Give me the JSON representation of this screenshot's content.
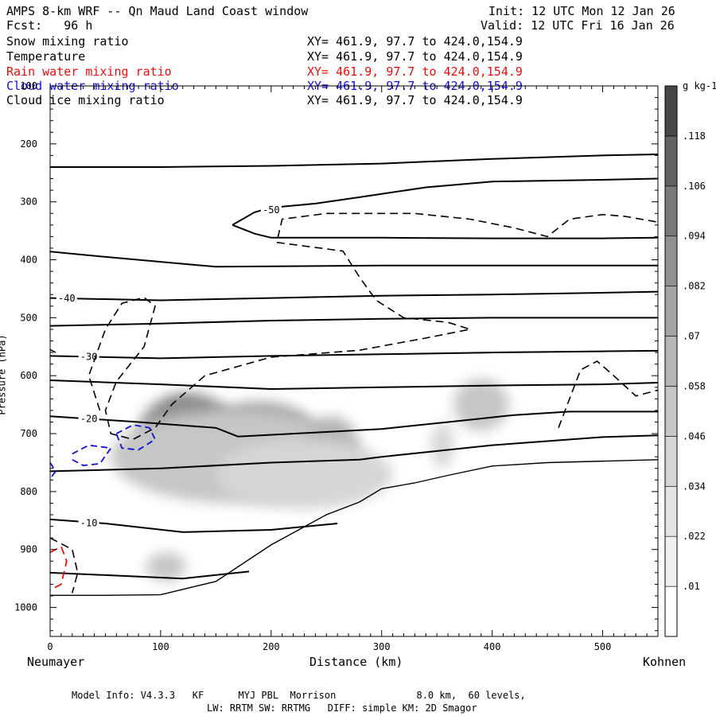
{
  "header": {
    "title": "AMPS 8-km WRF -- Qn Maud Land Coast window",
    "forecast": "Fcst:   96 h",
    "init": "Init: 12 UTC Mon 12 Jan 26",
    "valid": "Valid: 12 UTC Fri 16 Jan 26"
  },
  "fields": [
    {
      "name": "Snow mixing ratio",
      "xy": "XY= 461.9, 97.7 to 424.0,154.9",
      "color": "#000000"
    },
    {
      "name": "Temperature",
      "xy": "XY= 461.9, 97.7 to 424.0,154.9",
      "color": "#000000"
    },
    {
      "name": "Rain water mixing ratio",
      "xy": "XY= 461.9, 97.7 to 424.0,154.9",
      "color": "#e01010"
    },
    {
      "name": "Cloud water mixing ratio",
      "xy": "XY= 461.9, 97.7 to 424.0,154.9",
      "color": "#1010d0"
    },
    {
      "name": "Cloud ice mixing ratio",
      "xy": "XY= 461.9, 97.7 to 424.0,154.9",
      "color": "#000000"
    }
  ],
  "footer": {
    "model_line1": "Model Info: V4.3.3   KF      MYJ PBL  Morrison              8.0 km,  60 levels,",
    "model_line2": "LW: RRTM SW: RRTMG   DIFF: simple KM: 2D Smagor"
  },
  "chart_data": {
    "type": "heatmap",
    "title": "AMPS 8-km WRF -- Qn Maud Land Coast window",
    "xlabel": "Distance (km)",
    "ylabel": "Pressure (hPa)",
    "x_left_label": "Neumayer",
    "x_right_label": "Kohnen",
    "xlim": [
      0,
      550
    ],
    "ylim": [
      1050,
      100
    ],
    "x_ticks": [
      0,
      100,
      200,
      300,
      400,
      500
    ],
    "y_ticks": [
      100,
      200,
      300,
      400,
      500,
      600,
      700,
      800,
      900,
      1000
    ],
    "colorbar": {
      "unit": "g kg-1",
      "levels": [
        0.01,
        0.022,
        0.034,
        0.046,
        0.058,
        0.07,
        0.082,
        0.094,
        0.106,
        0.118
      ],
      "labels": [
        ".01",
        ".022",
        ".034",
        ".046",
        ".058",
        ".07",
        ".082",
        ".094",
        ".106",
        ".118"
      ],
      "colors": [
        "#ffffff",
        "#f0f0f0",
        "#e4e4e4",
        "#d6d6d6",
        "#c6c6c6",
        "#b6b6b6",
        "#a4a4a4",
        "#909090",
        "#7a7a7a",
        "#626262",
        "#484848"
      ]
    },
    "snow_blobs": [
      {
        "x": 120,
        "p": 690,
        "rx": 22,
        "ry": 45,
        "level": 10
      },
      {
        "x": 125,
        "p": 700,
        "rx": 45,
        "ry": 70,
        "level": 7
      },
      {
        "x": 190,
        "p": 710,
        "rx": 55,
        "ry": 65,
        "level": 6
      },
      {
        "x": 165,
        "p": 740,
        "rx": 110,
        "ry": 80,
        "level": 4
      },
      {
        "x": 255,
        "p": 730,
        "rx": 25,
        "ry": 60,
        "level": 5
      },
      {
        "x": 230,
        "p": 770,
        "rx": 80,
        "ry": 60,
        "level": 3
      },
      {
        "x": 390,
        "p": 650,
        "rx": 25,
        "ry": 45,
        "level": 4
      },
      {
        "x": 355,
        "p": 720,
        "rx": 10,
        "ry": 40,
        "level": 3
      },
      {
        "x": 105,
        "p": 930,
        "rx": 18,
        "ry": 25,
        "level": 4
      }
    ],
    "temperature_contours": [
      {
        "label": "",
        "label_x": null,
        "points": [
          [
            0,
            240
          ],
          [
            100,
            240
          ],
          [
            200,
            238
          ],
          [
            300,
            234
          ],
          [
            400,
            226
          ],
          [
            500,
            220
          ],
          [
            550,
            218
          ]
        ]
      },
      {
        "label": "-50",
        "label_x": 200,
        "points": [
          [
            165,
            340
          ],
          [
            185,
            318
          ],
          [
            200,
            310
          ],
          [
            240,
            303
          ],
          [
            280,
            292
          ],
          [
            340,
            275
          ],
          [
            400,
            265
          ],
          [
            500,
            262
          ],
          [
            550,
            260
          ]
        ]
      },
      {
        "label": "",
        "label_x": null,
        "points": [
          [
            165,
            340
          ],
          [
            185,
            355
          ],
          [
            200,
            362
          ],
          [
            300,
            362
          ],
          [
            400,
            363
          ],
          [
            500,
            363
          ],
          [
            550,
            362
          ]
        ]
      },
      {
        "label": "",
        "label_x": null,
        "points": [
          [
            0,
            386
          ],
          [
            50,
            395
          ],
          [
            150,
            412
          ],
          [
            300,
            410
          ],
          [
            450,
            410
          ],
          [
            550,
            410
          ]
        ]
      },
      {
        "label": "-40",
        "label_x": 15,
        "points": [
          [
            0,
            466
          ],
          [
            100,
            470
          ],
          [
            200,
            466
          ],
          [
            300,
            462
          ],
          [
            400,
            460
          ],
          [
            500,
            457
          ],
          [
            550,
            455
          ]
        ]
      },
      {
        "label": "",
        "label_x": null,
        "points": [
          [
            0,
            514
          ],
          [
            100,
            510
          ],
          [
            200,
            505
          ],
          [
            300,
            502
          ],
          [
            400,
            500
          ],
          [
            500,
            500
          ],
          [
            550,
            500
          ]
        ]
      },
      {
        "label": "-30",
        "label_x": 35,
        "points": [
          [
            0,
            566
          ],
          [
            100,
            570
          ],
          [
            200,
            566
          ],
          [
            300,
            563
          ],
          [
            400,
            560
          ],
          [
            500,
            558
          ],
          [
            550,
            557
          ]
        ]
      },
      {
        "label": "",
        "label_x": null,
        "points": [
          [
            0,
            608
          ],
          [
            100,
            615
          ],
          [
            200,
            623
          ],
          [
            300,
            620
          ],
          [
            400,
            617
          ],
          [
            500,
            615
          ],
          [
            550,
            612
          ]
        ]
      },
      {
        "label": "-20",
        "label_x": 35,
        "points": [
          [
            0,
            670
          ],
          [
            80,
            680
          ],
          [
            150,
            690
          ],
          [
            170,
            705
          ],
          [
            220,
            700
          ],
          [
            300,
            692
          ],
          [
            380,
            676
          ],
          [
            420,
            668
          ],
          [
            470,
            662
          ],
          [
            550,
            662
          ]
        ]
      },
      {
        "label": "",
        "label_x": null,
        "points": [
          [
            0,
            765
          ],
          [
            100,
            760
          ],
          [
            200,
            750
          ],
          [
            280,
            745
          ],
          [
            300,
            740
          ],
          [
            400,
            720
          ],
          [
            500,
            706
          ],
          [
            550,
            703
          ]
        ]
      },
      {
        "label": "-10",
        "label_x": 35,
        "points": [
          [
            0,
            848
          ],
          [
            50,
            855
          ],
          [
            120,
            870
          ],
          [
            200,
            866
          ],
          [
            260,
            855
          ]
        ]
      },
      {
        "label": "",
        "label_x": null,
        "points": [
          [
            0,
            940
          ],
          [
            60,
            945
          ],
          [
            120,
            950
          ],
          [
            180,
            938
          ]
        ]
      }
    ],
    "terrain_profile": [
      [
        0,
        979
      ],
      [
        50,
        979
      ],
      [
        100,
        978
      ],
      [
        150,
        955
      ],
      [
        200,
        892
      ],
      [
        250,
        840
      ],
      [
        280,
        818
      ],
      [
        300,
        795
      ],
      [
        330,
        785
      ],
      [
        360,
        772
      ],
      [
        400,
        756
      ],
      [
        450,
        750
      ],
      [
        550,
        745
      ]
    ],
    "cloud_ice_contours": [
      {
        "points": [
          [
            0,
            880
          ],
          [
            20,
            900
          ],
          [
            25,
            940
          ],
          [
            20,
            975
          ]
        ]
      },
      {
        "points": [
          [
            45,
            660
          ],
          [
            35,
            600
          ],
          [
            50,
            520
          ],
          [
            65,
            475
          ],
          [
            85,
            465
          ],
          [
            95,
            480
          ],
          [
            85,
            550
          ],
          [
            60,
            610
          ],
          [
            50,
            660
          ],
          [
            55,
            700
          ],
          [
            75,
            710
          ],
          [
            95,
            690
          ],
          [
            110,
            650
          ],
          [
            140,
            600
          ],
          [
            200,
            568
          ],
          [
            280,
            556
          ],
          [
            340,
            535
          ],
          [
            380,
            520
          ],
          [
            360,
            508
          ],
          [
            320,
            500
          ],
          [
            295,
            470
          ],
          [
            280,
            430
          ],
          [
            265,
            385
          ],
          [
            205,
            370
          ],
          [
            210,
            330
          ],
          [
            250,
            320
          ],
          [
            330,
            320
          ],
          [
            380,
            330
          ],
          [
            420,
            345
          ],
          [
            450,
            360
          ],
          [
            470,
            330
          ],
          [
            500,
            322
          ],
          [
            520,
            325
          ],
          [
            550,
            335
          ]
        ]
      },
      {
        "points": [
          [
            460,
            690
          ],
          [
            470,
            640
          ],
          [
            480,
            590
          ],
          [
            495,
            575
          ],
          [
            510,
            600
          ],
          [
            530,
            635
          ],
          [
            550,
            625
          ]
        ]
      },
      {
        "points": [
          [
            0,
            555
          ],
          [
            5,
            560
          ]
        ]
      }
    ],
    "rain_contours": [
      {
        "points": [
          [
            0,
            905
          ],
          [
            10,
            895
          ],
          [
            15,
            920
          ],
          [
            10,
            960
          ],
          [
            0,
            970
          ]
        ]
      }
    ],
    "cloud_water_contours": [
      {
        "points": [
          [
            20,
            735
          ],
          [
            35,
            720
          ],
          [
            55,
            725
          ],
          [
            45,
            752
          ],
          [
            30,
            755
          ],
          [
            20,
            745
          ]
        ]
      },
      {
        "points": [
          [
            60,
            700
          ],
          [
            75,
            685
          ],
          [
            90,
            690
          ],
          [
            95,
            710
          ],
          [
            80,
            728
          ],
          [
            65,
            725
          ],
          [
            60,
            700
          ]
        ]
      },
      {
        "points": [
          [
            0,
            750
          ],
          [
            5,
            765
          ],
          [
            0,
            778
          ]
        ]
      }
    ]
  }
}
